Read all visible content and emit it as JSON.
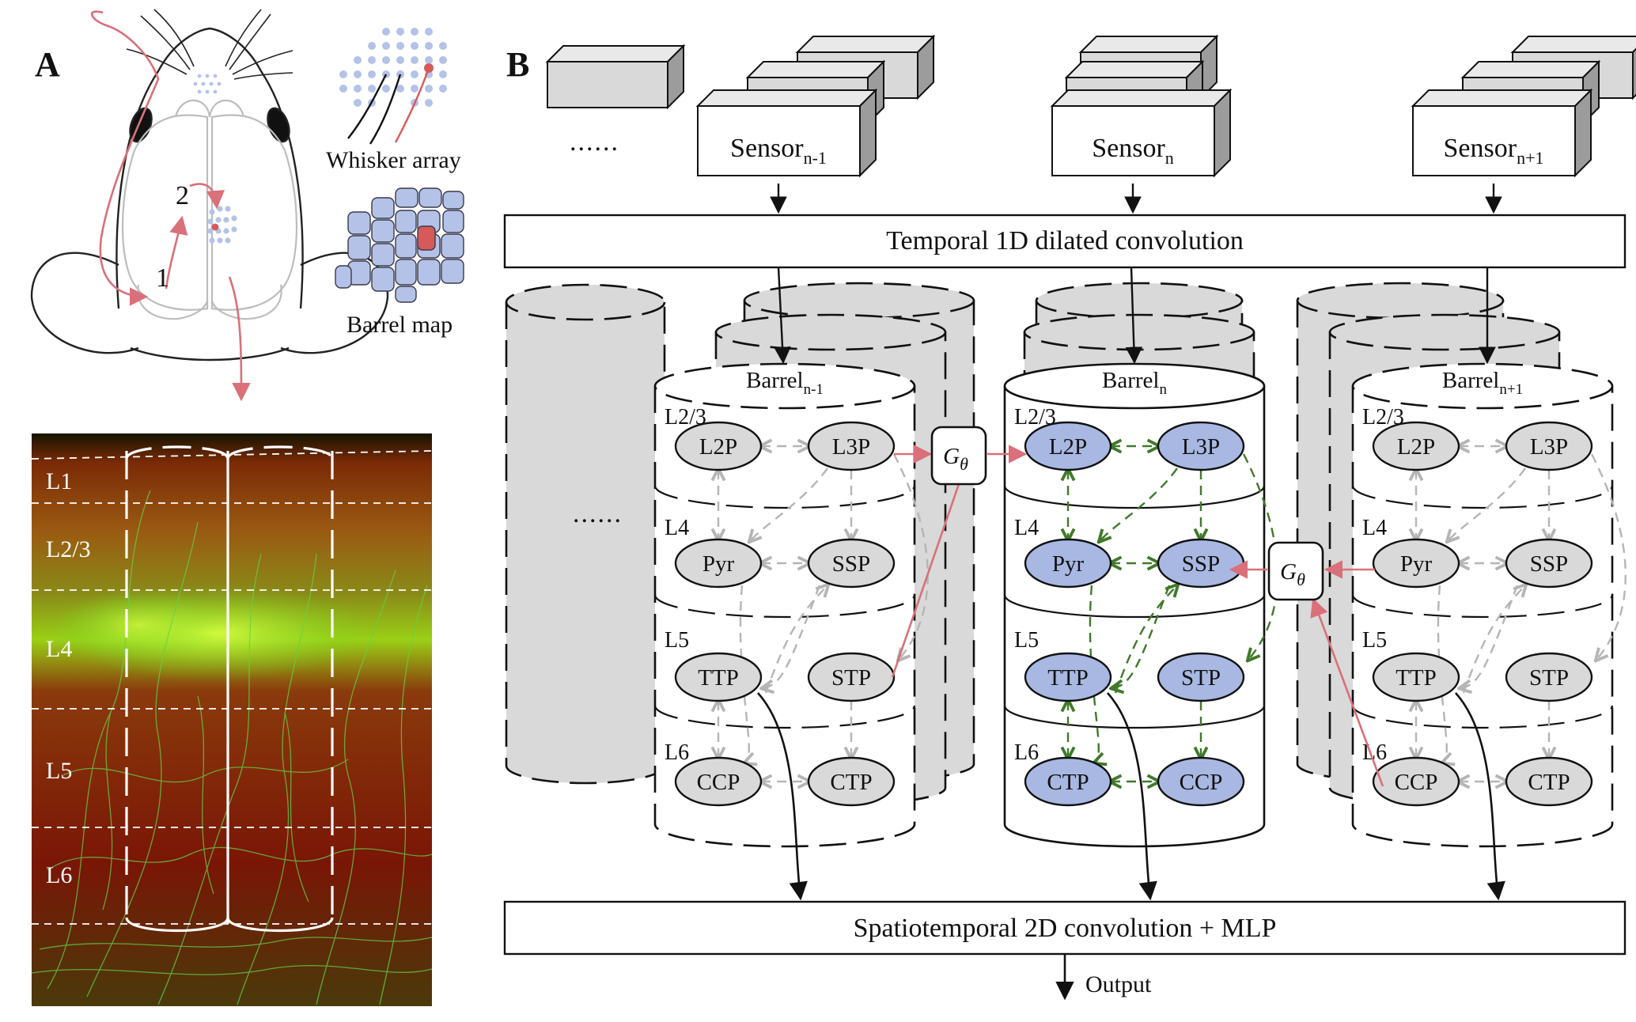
{
  "panels": {
    "a": "A",
    "b": "B"
  },
  "panel_a": {
    "route_numbers": [
      "1",
      "2"
    ],
    "whisker_label": "Whisker array",
    "barrel_label": "Barrel map",
    "micrograph_layers": [
      "L1",
      "L2/3",
      "L4",
      "L5",
      "L6"
    ]
  },
  "panel_b": {
    "ellipsis": "......",
    "sensors": [
      {
        "main": "Sensor",
        "sub": "n-1"
      },
      {
        "main": "Sensor",
        "sub": "n"
      },
      {
        "main": "Sensor",
        "sub": "n+1"
      }
    ],
    "temporal_box": "Temporal 1D dilated convolution",
    "barrels": [
      {
        "main": "Barrel",
        "sub": "n-1"
      },
      {
        "main": "Barrel",
        "sub": "n"
      },
      {
        "main": "Barrel",
        "sub": "n+1"
      }
    ],
    "layers": [
      "L2/3",
      "L4",
      "L5",
      "L6"
    ],
    "nodes_side": [
      [
        "L2P",
        "L3P"
      ],
      [
        "Pyr",
        "SSP"
      ],
      [
        "TTP",
        "STP"
      ],
      [
        "CCP",
        "CTP"
      ]
    ],
    "nodes_center": [
      [
        "L2P",
        "L3P"
      ],
      [
        "Pyr",
        "SSP"
      ],
      [
        "TTP",
        "STP"
      ],
      [
        "CTP",
        "CCP"
      ]
    ],
    "gate_symbol": "G",
    "gate_subscript": "θ",
    "spatio_box": "Spatiotemporal 2D convolution + MLP",
    "output": "Output"
  },
  "colors": {
    "active_node": "#a8b8e2",
    "inactive_node": "#d9d9d9",
    "gate_arrow": "#d9707a",
    "active_arrow": "#3f7a2a",
    "inactive_arrow": "#b5b5b5",
    "dot_blue": "#b4c2e8",
    "dot_red": "#d65a5a"
  }
}
